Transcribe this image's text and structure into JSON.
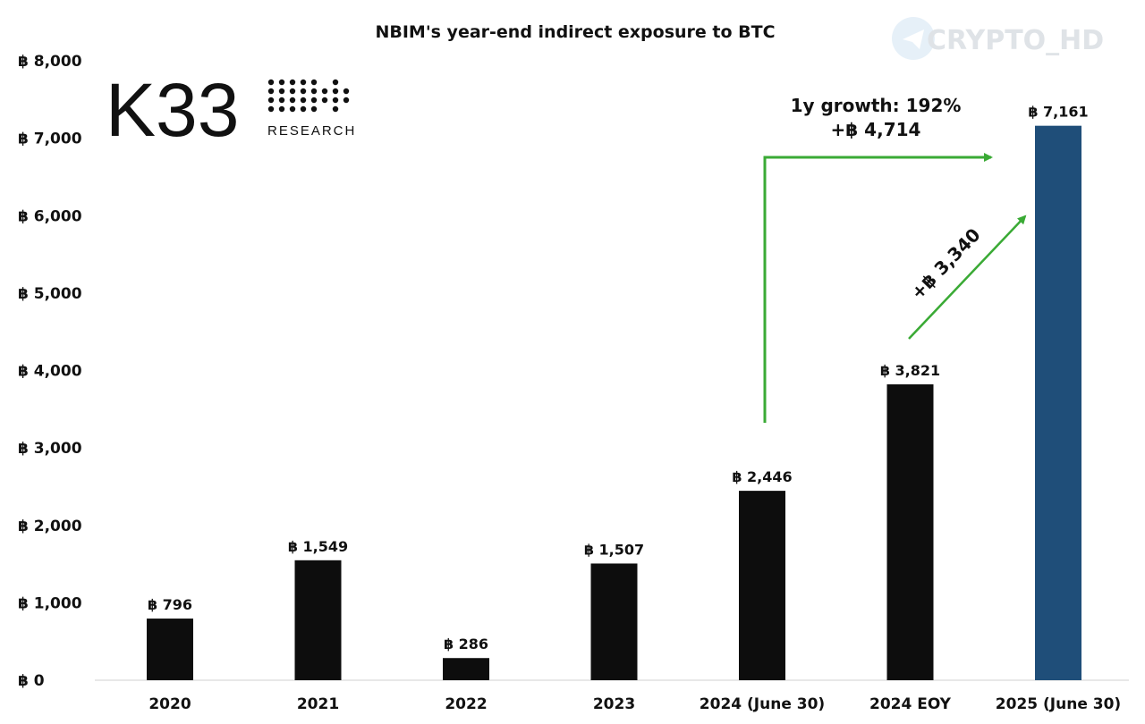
{
  "logo": {
    "name": "K33",
    "tagline": "RESEARCH"
  },
  "watermark": {
    "text": "CRYPTO_HD"
  },
  "chart_data": {
    "type": "bar",
    "title": "NBIM's year-end indirect exposure to BTC",
    "xlabel": "",
    "ylabel": "",
    "ylim": [
      0,
      8000
    ],
    "yticks": [
      "฿ 0",
      "฿ 1,000",
      "฿ 2,000",
      "฿ 3,000",
      "฿ 4,000",
      "฿ 5,000",
      "฿ 6,000",
      "฿ 7,000",
      "฿ 8,000"
    ],
    "ytick_values": [
      0,
      1000,
      2000,
      3000,
      4000,
      5000,
      6000,
      7000,
      8000
    ],
    "categories": [
      "2020",
      "2021",
      "2022",
      "2023",
      "2024 (June 30)",
      "2024 EOY",
      "2025 (June 30)"
    ],
    "values": [
      796,
      1549,
      286,
      1507,
      2446,
      3821,
      7161
    ],
    "data_labels": [
      "฿ 796",
      "฿ 1,549",
      "฿ 286",
      "฿ 1,507",
      "฿ 2,446",
      "฿ 3,821",
      "฿ 7,161"
    ],
    "bar_colors": [
      "#0d0d0d",
      "#0d0d0d",
      "#0d0d0d",
      "#0d0d0d",
      "#0d0d0d",
      "#0d0d0d",
      "#1f4e79"
    ],
    "grid": false,
    "arrow_color": "#3aaa35",
    "annotations": {
      "growth_line1": "1y growth: 192%",
      "growth_line2": "+฿ 4,714",
      "diag": "+฿ 3,340"
    }
  }
}
